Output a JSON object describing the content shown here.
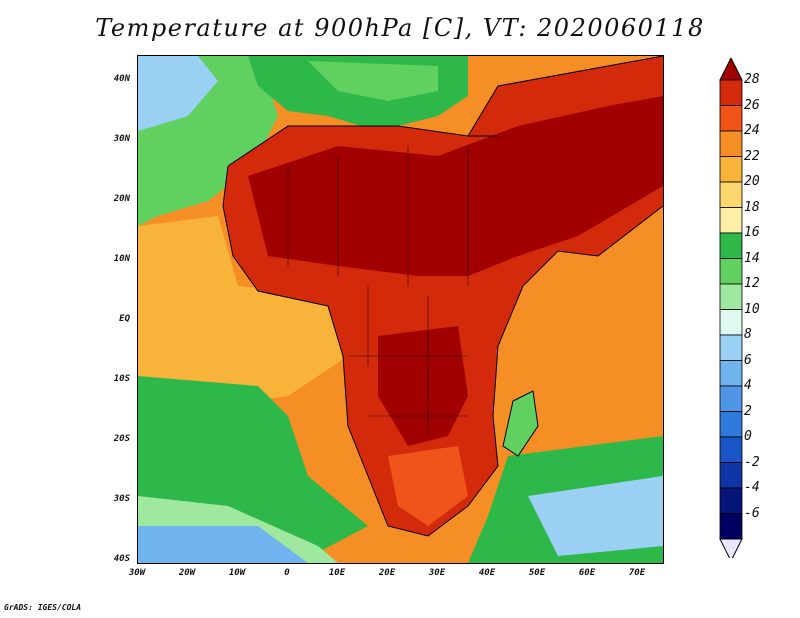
{
  "title": "Temperature at 900hPa [C], VT: 2020060118",
  "credit": "GrADS: IGES/COLA",
  "map": {
    "lat_labels": [
      "40N",
      "30N",
      "20N",
      "10N",
      "EQ",
      "10S",
      "20S",
      "30S",
      "40S"
    ],
    "lon_labels": [
      "30W",
      "20W",
      "10W",
      "0",
      "10E",
      "20E",
      "30E",
      "40E",
      "50E",
      "60E",
      "70E"
    ]
  },
  "colorbar": {
    "labels": [
      "28",
      "26",
      "24",
      "22",
      "20",
      "18",
      "16",
      "14",
      "12",
      "10",
      "8",
      "6",
      "4",
      "2",
      "0",
      "-2",
      "-4",
      "-6"
    ],
    "colors": [
      "#a00000",
      "#d42a0c",
      "#f0541a",
      "#f58f25",
      "#f8b43a",
      "#fcd66e",
      "#fdf0a6",
      "#2fb84a",
      "#60d060",
      "#a0e8a0",
      "#dff9ef",
      "#9ad0f4",
      "#6fb4ee",
      "#4f97e6",
      "#2f79dc",
      "#1a55c8",
      "#0f34a6",
      "#07157a",
      "#000060",
      "#e9e6ff"
    ]
  }
}
